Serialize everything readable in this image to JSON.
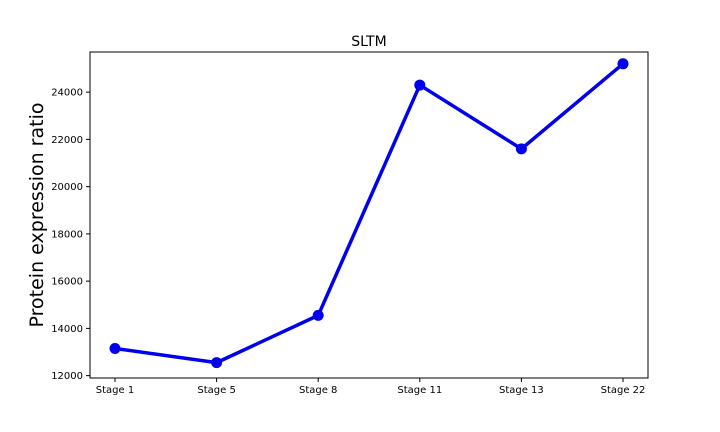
{
  "chart_data": {
    "type": "line",
    "title": "SLTM",
    "xlabel": "",
    "ylabel": "Protein expression ratio",
    "categories": [
      "Stage 1",
      "Stage 5",
      "Stage 8",
      "Stage 11",
      "Stage 13",
      "Stage 22"
    ],
    "series": [
      {
        "values": [
          13150,
          12550,
          14550,
          24300,
          21600,
          25200
        ],
        "color": "#0000ee"
      }
    ],
    "ylim": [
      11900,
      25700
    ],
    "yticks": [
      12000,
      14000,
      16000,
      18000,
      20000,
      22000,
      24000
    ],
    "grid": false,
    "legend": "none"
  }
}
